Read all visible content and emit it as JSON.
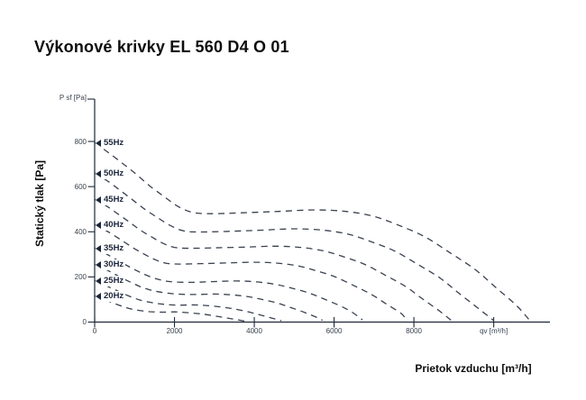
{
  "page": {
    "title": "Výkonové krivky EL 560 D4 O 01"
  },
  "chart_data": {
    "type": "line",
    "title": "Výkonové krivky EL 560 D4 O 01",
    "xlabel": "Prietok vzduchu [m³/h]",
    "x_axis_unit": "qv [m³/h]",
    "ylabel": "Statický tlak [Pa]",
    "y_axis_unit": "P sf [Pa]",
    "xlim": [
      0,
      11400
    ],
    "ylim": [
      0,
      990
    ],
    "x_ticks": [
      0,
      2000,
      4000,
      6000,
      8000
    ],
    "y_ticks": [
      0,
      200,
      400,
      600,
      800
    ],
    "grid": false,
    "line_style": "dashed",
    "legend_position": "left-axis-markers",
    "colors": {
      "curve": "#39414f",
      "axis": "#1f2836",
      "tick_text": "#39424f",
      "label_text": "#1b2538",
      "title_text": "#0d0d0d"
    },
    "series": [
      {
        "name": "55Hz",
        "points": [
          [
            0,
            795
          ],
          [
            350,
            750
          ],
          [
            720,
            700
          ],
          [
            1060,
            652
          ],
          [
            1400,
            600
          ],
          [
            1740,
            556
          ],
          [
            2080,
            513
          ],
          [
            2450,
            486
          ],
          [
            2900,
            480
          ],
          [
            3700,
            484
          ],
          [
            4600,
            490
          ],
          [
            5500,
            497
          ],
          [
            6300,
            490
          ],
          [
            7000,
            468
          ],
          [
            7570,
            432
          ],
          [
            8250,
            380
          ],
          [
            8930,
            304
          ],
          [
            9540,
            232
          ],
          [
            10060,
            152
          ],
          [
            10580,
            72
          ],
          [
            10890,
            10
          ]
        ]
      },
      {
        "name": "50Hz",
        "points": [
          [
            0,
            660
          ],
          [
            320,
            625
          ],
          [
            650,
            582
          ],
          [
            960,
            540
          ],
          [
            1270,
            498
          ],
          [
            1580,
            462
          ],
          [
            1890,
            428
          ],
          [
            2230,
            404
          ],
          [
            2640,
            399
          ],
          [
            3360,
            402
          ],
          [
            4180,
            407
          ],
          [
            5000,
            413
          ],
          [
            5730,
            407
          ],
          [
            6360,
            389
          ],
          [
            6880,
            359
          ],
          [
            7500,
            316
          ],
          [
            8120,
            253
          ],
          [
            8670,
            193
          ],
          [
            9140,
            126
          ],
          [
            9620,
            60
          ],
          [
            9990,
            8
          ]
        ]
      },
      {
        "name": "45Hz",
        "points": [
          [
            0,
            544
          ],
          [
            290,
            515
          ],
          [
            590,
            478
          ],
          [
            870,
            443
          ],
          [
            1140,
            408
          ],
          [
            1420,
            378
          ],
          [
            1700,
            350
          ],
          [
            2000,
            331
          ],
          [
            2370,
            327
          ],
          [
            3030,
            329
          ],
          [
            3760,
            332
          ],
          [
            4500,
            336
          ],
          [
            5150,
            331
          ],
          [
            5720,
            316
          ],
          [
            6190,
            292
          ],
          [
            6750,
            257
          ],
          [
            7300,
            206
          ],
          [
            7800,
            157
          ],
          [
            8220,
            102
          ],
          [
            8650,
            48
          ],
          [
            8930,
            8
          ]
        ]
      },
      {
        "name": "40Hz",
        "points": [
          [
            0,
            432
          ],
          [
            250,
            409
          ],
          [
            520,
            380
          ],
          [
            770,
            351
          ],
          [
            1020,
            323
          ],
          [
            1260,
            299
          ],
          [
            1510,
            277
          ],
          [
            1780,
            261
          ],
          [
            2110,
            257
          ],
          [
            2690,
            259
          ],
          [
            3340,
            262
          ],
          [
            4000,
            265
          ],
          [
            4580,
            261
          ],
          [
            5090,
            249
          ],
          [
            5500,
            230
          ],
          [
            6000,
            202
          ],
          [
            6490,
            162
          ],
          [
            6930,
            123
          ],
          [
            7310,
            80
          ],
          [
            7690,
            37
          ],
          [
            7800,
            10
          ]
        ]
      },
      {
        "name": "35Hz",
        "points": [
          [
            0,
            328
          ],
          [
            230,
            308
          ],
          [
            470,
            284
          ],
          [
            700,
            261
          ],
          [
            920,
            240
          ],
          [
            1140,
            220
          ],
          [
            1360,
            203
          ],
          [
            1600,
            189
          ],
          [
            1900,
            179
          ],
          [
            2400,
            176
          ],
          [
            2950,
            179
          ],
          [
            3550,
            182
          ],
          [
            4050,
            178
          ],
          [
            4500,
            168
          ],
          [
            4900,
            152
          ],
          [
            5350,
            130
          ],
          [
            5750,
            102
          ],
          [
            6150,
            72
          ],
          [
            6450,
            44
          ],
          [
            6710,
            10
          ]
        ]
      },
      {
        "name": "30Hz",
        "points": [
          [
            0,
            256
          ],
          [
            200,
            240
          ],
          [
            400,
            222
          ],
          [
            600,
            203
          ],
          [
            790,
            186
          ],
          [
            980,
            170
          ],
          [
            1170,
            155
          ],
          [
            1380,
            143
          ],
          [
            1640,
            133
          ],
          [
            2060,
            124
          ],
          [
            2530,
            122
          ],
          [
            3040,
            124
          ],
          [
            3470,
            120
          ],
          [
            3860,
            112
          ],
          [
            4200,
            100
          ],
          [
            4580,
            84
          ],
          [
            4920,
            64
          ],
          [
            5270,
            42
          ],
          [
            5550,
            22
          ],
          [
            5710,
            8
          ]
        ]
      },
      {
        "name": "25Hz",
        "points": [
          [
            0,
            184
          ],
          [
            170,
            172
          ],
          [
            330,
            158
          ],
          [
            500,
            144
          ],
          [
            660,
            131
          ],
          [
            820,
            118
          ],
          [
            980,
            107
          ],
          [
            1150,
            97
          ],
          [
            1370,
            88
          ],
          [
            1720,
            79
          ],
          [
            2110,
            75
          ],
          [
            2530,
            76
          ],
          [
            2890,
            72
          ],
          [
            3210,
            66
          ],
          [
            3500,
            58
          ],
          [
            3810,
            47
          ],
          [
            4100,
            34
          ],
          [
            4390,
            20
          ],
          [
            4680,
            6
          ]
        ]
      },
      {
        "name": "20Hz",
        "points": [
          [
            0,
            116
          ],
          [
            140,
            108
          ],
          [
            270,
            99
          ],
          [
            400,
            89
          ],
          [
            530,
            80
          ],
          [
            660,
            72
          ],
          [
            790,
            64
          ],
          [
            920,
            58
          ],
          [
            1100,
            52
          ],
          [
            1380,
            46
          ],
          [
            1690,
            44
          ],
          [
            2020,
            45
          ],
          [
            2310,
            42
          ],
          [
            2570,
            38
          ],
          [
            2800,
            33
          ],
          [
            3050,
            26
          ],
          [
            3280,
            19
          ],
          [
            3520,
            12
          ],
          [
            3770,
            4
          ]
        ]
      }
    ]
  }
}
